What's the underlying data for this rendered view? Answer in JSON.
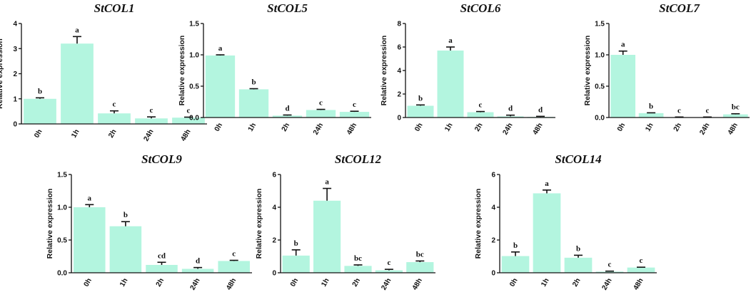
{
  "chart_data": [
    {
      "type": "bar",
      "title": "StCOL1",
      "ylabel": "Relative expression",
      "xlabel": "",
      "categories": [
        "0h",
        "1h",
        "2h",
        "24h",
        "48h"
      ],
      "values": [
        1.0,
        3.2,
        0.42,
        0.22,
        0.25
      ],
      "errors": [
        0.04,
        0.28,
        0.1,
        0.06,
        0.02
      ],
      "letters": [
        "b",
        "a",
        "c",
        "c",
        "c"
      ],
      "ylim": [
        0,
        4
      ],
      "yticks": [
        0,
        1,
        2,
        3,
        4
      ],
      "ytick_labels": [
        "0",
        "1",
        "2",
        "3",
        "4"
      ],
      "bar_color": "#b3f5df"
    },
    {
      "type": "bar",
      "title": "StCOL5",
      "ylabel": "Relative expression",
      "xlabel": "",
      "categories": [
        "0h",
        "1h",
        "2h",
        "24h",
        "48h"
      ],
      "values": [
        0.99,
        0.45,
        0.03,
        0.12,
        0.09
      ],
      "errors": [
        0.01,
        0.01,
        0.01,
        0.01,
        0.01
      ],
      "letters": [
        "a",
        "b",
        "d",
        "c",
        "c"
      ],
      "ylim": [
        0,
        1.5
      ],
      "yticks": [
        0,
        0.5,
        1.0,
        1.5
      ],
      "ytick_labels": [
        "0.0",
        "0.5",
        "1.0",
        "1.5"
      ],
      "bar_color": "#b3f5df"
    },
    {
      "type": "bar",
      "title": "StCOL6",
      "ylabel": "Relative expression",
      "xlabel": "",
      "categories": [
        "0h",
        "1h",
        "2h",
        "24h",
        "48h"
      ],
      "values": [
        1.0,
        5.7,
        0.45,
        0.1,
        0.05
      ],
      "errors": [
        0.07,
        0.3,
        0.06,
        0.1,
        0.05
      ],
      "letters": [
        "b",
        "a",
        "c",
        "d",
        "d"
      ],
      "ylim": [
        0,
        8
      ],
      "yticks": [
        0,
        2,
        4,
        6,
        8
      ],
      "ytick_labels": [
        "0",
        "2",
        "4",
        "6",
        "8"
      ],
      "bar_color": "#b3f5df"
    },
    {
      "type": "bar",
      "title": "StCOL7",
      "ylabel": "Relative expression",
      "xlabel": "",
      "categories": [
        "0h",
        "1h",
        "2h",
        "24h",
        "48h"
      ],
      "values": [
        1.0,
        0.07,
        0.005,
        0.005,
        0.05
      ],
      "errors": [
        0.06,
        0.005,
        0.003,
        0.003,
        0.01
      ],
      "letters": [
        "a",
        "b",
        "c",
        "c",
        "bc"
      ],
      "ylim": [
        0,
        1.5
      ],
      "yticks": [
        0,
        0.5,
        1.0,
        1.5
      ],
      "ytick_labels": [
        "0.0",
        "0.5",
        "1.0",
        "1.5"
      ],
      "bar_color": "#b3f5df"
    },
    {
      "type": "bar",
      "title": "StCOL9",
      "ylabel": "Relative expression",
      "xlabel": "",
      "categories": [
        "0h",
        "1h",
        "2h",
        "24h",
        "48h"
      ],
      "values": [
        1.0,
        0.71,
        0.12,
        0.06,
        0.18
      ],
      "errors": [
        0.04,
        0.07,
        0.04,
        0.02,
        0.01
      ],
      "letters": [
        "a",
        "b",
        "cd",
        "d",
        "c"
      ],
      "ylim": [
        0,
        1.5
      ],
      "yticks": [
        0,
        0.5,
        1.0,
        1.5
      ],
      "ytick_labels": [
        "0.0",
        "0.5",
        "1.0",
        "1.5"
      ],
      "bar_color": "#b3f5df"
    },
    {
      "type": "bar",
      "title": "StCOL12",
      "ylabel": "Relative expression",
      "xlabel": "",
      "categories": [
        "0h",
        "1h",
        "2h",
        "24h",
        "48h"
      ],
      "values": [
        1.05,
        4.4,
        0.42,
        0.15,
        0.65
      ],
      "errors": [
        0.35,
        0.75,
        0.06,
        0.06,
        0.07
      ],
      "letters": [
        "b",
        "a",
        "bc",
        "c",
        "bc"
      ],
      "ylim": [
        0,
        6
      ],
      "yticks": [
        0,
        2,
        4,
        6
      ],
      "ytick_labels": [
        "0",
        "2",
        "4",
        "6"
      ],
      "bar_color": "#b3f5df"
    },
    {
      "type": "bar",
      "title": "StCOL14",
      "ylabel": "Relative expression",
      "xlabel": "",
      "categories": [
        "0h",
        "1h",
        "2h",
        "24h",
        "48h"
      ],
      "values": [
        1.02,
        4.85,
        0.92,
        0.07,
        0.32
      ],
      "errors": [
        0.25,
        0.2,
        0.15,
        0.03,
        0.02
      ],
      "letters": [
        "b",
        "a",
        "b",
        "c",
        "c"
      ],
      "ylim": [
        0,
        6
      ],
      "yticks": [
        0,
        2,
        4,
        6
      ],
      "ytick_labels": [
        "0",
        "2",
        "4",
        "6"
      ],
      "bar_color": "#b3f5df"
    }
  ]
}
